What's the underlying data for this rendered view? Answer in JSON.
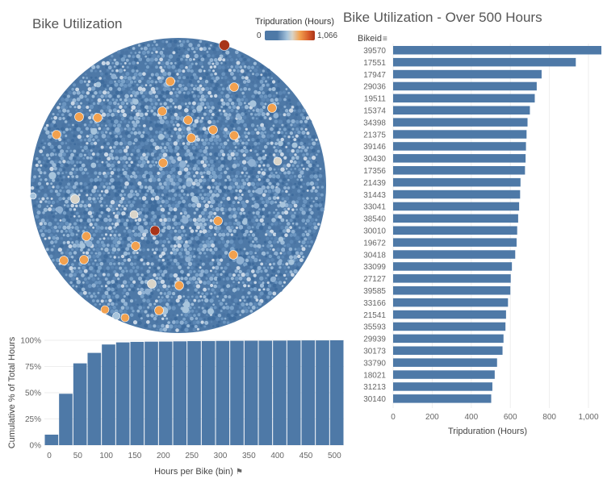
{
  "bubble": {
    "title": "Bike Utilization",
    "legend": {
      "title": "Tripduration (Hours)",
      "min_label": "0",
      "max_label": "1,066"
    },
    "colors": {
      "low": "#4e79a7",
      "light": "#a7c4dc",
      "mid": "#d9d4c8",
      "orange": "#f2a14f",
      "high": "#a83419"
    }
  },
  "bars": {
    "title": "Bike Utilization - Over 500 Hours",
    "column_header": "Bikeid",
    "sort_icon": "sort-descending-icon",
    "bar_color": "#4e79a7"
  },
  "histogram": {
    "bar_color": "#4e79a7",
    "pin_icon": "pin-icon"
  },
  "chart_data": [
    {
      "type": "bar",
      "title": "Bike Utilization - Over 500 Hours",
      "orientation": "horizontal",
      "categories": [
        "39570",
        "17551",
        "17947",
        "29036",
        "19511",
        "15374",
        "34398",
        "21375",
        "39146",
        "30430",
        "17356",
        "21439",
        "31443",
        "33041",
        "38540",
        "30010",
        "19672",
        "30418",
        "33099",
        "27127",
        "39585",
        "33166",
        "21541",
        "35593",
        "29939",
        "30173",
        "33790",
        "18021",
        "31213",
        "30140"
      ],
      "values": [
        1066,
        935,
        760,
        735,
        725,
        700,
        688,
        683,
        680,
        678,
        675,
        652,
        650,
        645,
        640,
        635,
        632,
        625,
        608,
        602,
        600,
        588,
        578,
        575,
        565,
        560,
        532,
        520,
        508,
        502
      ],
      "xlabel": "Tripduration (Hours)",
      "ylabel": "Bikeid",
      "xlim": [
        0,
        1066
      ],
      "xticks": [
        "0",
        "200",
        "400",
        "600",
        "800",
        "1,000"
      ],
      "grid": true
    },
    {
      "type": "bar",
      "title": "",
      "categories": [
        0,
        25,
        50,
        75,
        100,
        125,
        150,
        175,
        200,
        225,
        250,
        275,
        300,
        325,
        350,
        375,
        400,
        425,
        450,
        475,
        500
      ],
      "values": [
        10,
        49,
        78,
        88,
        96,
        98,
        98.5,
        98.7,
        98.8,
        99,
        99.2,
        99.3,
        99.4,
        99.5,
        99.6,
        99.6,
        99.7,
        99.8,
        99.9,
        99.9,
        100
      ],
      "xlabel": "Hours per Bike (bin)",
      "ylabel": "Cumulative % of Total Hours",
      "ylim": [
        0,
        100
      ],
      "yticks": [
        "0%",
        "25%",
        "50%",
        "75%",
        "100%"
      ],
      "xticks": [
        "0",
        "50",
        "100",
        "150",
        "200",
        "250",
        "300",
        "350",
        "400",
        "450",
        "500"
      ],
      "grid": true
    },
    {
      "type": "scatter",
      "title": "Bike Utilization",
      "description_kind": "packed bubbles colored by Tripduration (Hours)",
      "color_range": [
        0,
        1066
      ]
    }
  ]
}
